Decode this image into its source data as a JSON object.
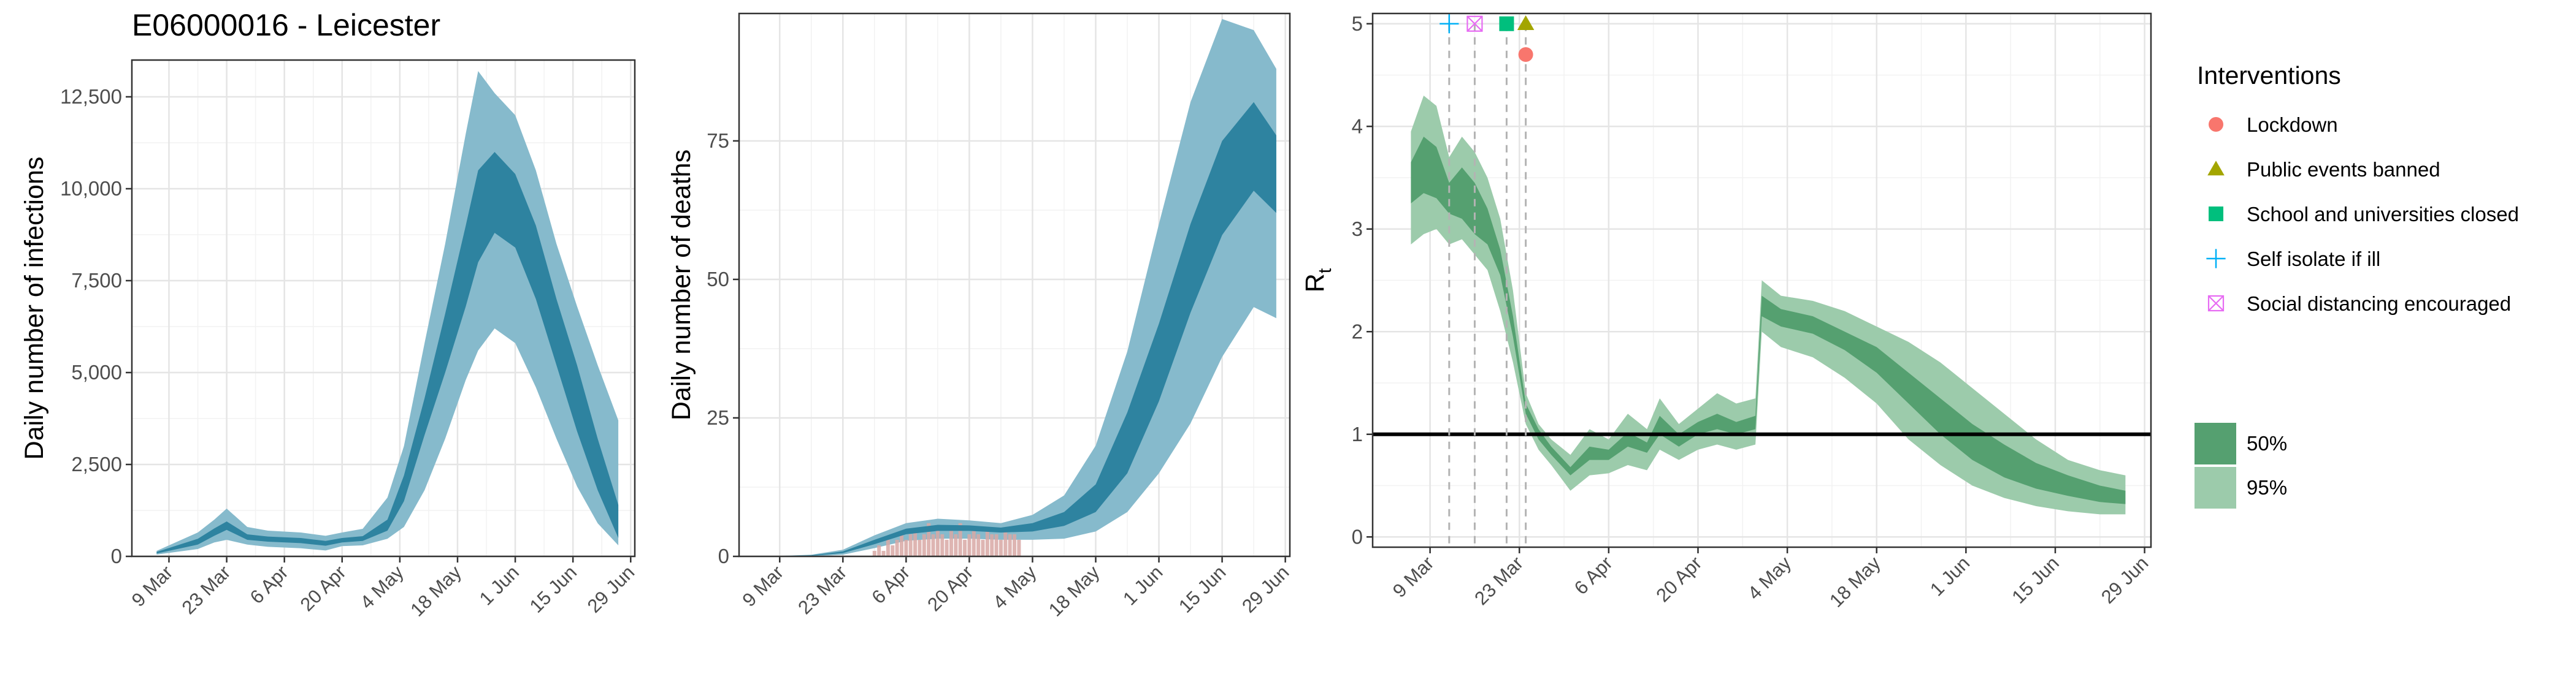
{
  "title": "E06000016 - Leicester",
  "date_ticks": [
    "9 Mar",
    "23 Mar",
    "6 Apr",
    "20 Apr",
    "4 May",
    "18 May",
    "1 Jun",
    "15 Jun",
    "29 Jun"
  ],
  "colors": {
    "band_inner_blue": "#2E83A0",
    "band_outer_blue": "#86BACC",
    "band_inner_green": "#55A070",
    "band_outer_green": "#9CCBAB",
    "observed_deaths": "#D8A8A4",
    "lockdown": "#F8766D",
    "public_events": "#A3A500",
    "schools": "#00BF7D",
    "self_isolate": "#00B0F6",
    "social_distancing": "#E76BF3"
  },
  "chart_data": [
    {
      "type": "area",
      "name": "infections",
      "ylabel": "Daily number of infections",
      "ylim": [
        0,
        13500
      ],
      "yticks": [
        0,
        2500,
        5000,
        7500,
        10000,
        12500
      ],
      "ytick_labels": [
        "0",
        "2,500",
        "5,000",
        "7,500",
        "10,000",
        "12,500"
      ],
      "x": [
        "2020-03-06",
        "2020-03-16",
        "2020-03-20",
        "2020-03-23",
        "2020-03-28",
        "2020-04-02",
        "2020-04-10",
        "2020-04-16",
        "2020-04-20",
        "2020-04-25",
        "2020-05-01",
        "2020-05-05",
        "2020-05-10",
        "2020-05-15",
        "2020-05-20",
        "2020-05-23",
        "2020-05-27",
        "2020-06-01",
        "2020-06-06",
        "2020-06-11",
        "2020-06-16",
        "2020-06-21",
        "2020-06-26"
      ],
      "series": [
        {
          "name": "95%",
          "lower": [
            50,
            200,
            380,
            450,
            320,
            260,
            220,
            160,
            280,
            300,
            480,
            800,
            1800,
            3200,
            4800,
            5600,
            6200,
            5800,
            4600,
            3200,
            1900,
            900,
            300
          ],
          "upper": [
            150,
            650,
            1000,
            1300,
            800,
            700,
            650,
            560,
            650,
            750,
            1600,
            3000,
            5800,
            8500,
            11500,
            13200,
            12600,
            12000,
            10500,
            8500,
            6800,
            5200,
            3700
          ]
        },
        {
          "name": "50%",
          "lower": [
            80,
            320,
            560,
            720,
            450,
            400,
            360,
            290,
            380,
            420,
            700,
            1500,
            3300,
            5000,
            6800,
            8000,
            8800,
            8400,
            7000,
            5200,
            3400,
            1800,
            500
          ],
          "upper": [
            120,
            480,
            760,
            950,
            600,
            540,
            500,
            420,
            500,
            550,
            1000,
            2200,
            4300,
            6600,
            9000,
            10500,
            11000,
            10400,
            9000,
            7000,
            5200,
            3200,
            1400
          ]
        }
      ]
    },
    {
      "type": "area",
      "name": "deaths",
      "ylabel": "Daily number of deaths",
      "ylim": [
        0,
        98
      ],
      "yticks": [
        0,
        25,
        50,
        75
      ],
      "ytick_labels": [
        "0",
        "25",
        "50",
        "75"
      ],
      "x": [
        "2020-03-06",
        "2020-03-16",
        "2020-03-23",
        "2020-03-30",
        "2020-04-06",
        "2020-04-13",
        "2020-04-20",
        "2020-04-27",
        "2020-05-04",
        "2020-05-11",
        "2020-05-18",
        "2020-05-25",
        "2020-06-01",
        "2020-06-08",
        "2020-06-15",
        "2020-06-22",
        "2020-06-27"
      ],
      "series": [
        {
          "name": "95%",
          "lower": [
            0,
            0,
            0.3,
            1.5,
            2.8,
            3.2,
            3.2,
            3.0,
            3.0,
            3.2,
            4.5,
            8,
            15,
            24,
            36,
            45,
            43
          ],
          "upper": [
            0,
            0.3,
            1.2,
            3.8,
            6.0,
            6.8,
            6.5,
            6.0,
            7.5,
            11,
            20,
            37,
            60,
            82,
            97,
            95,
            88
          ]
        },
        {
          "name": "50%",
          "lower": [
            0,
            0.1,
            0.6,
            2.2,
            4.0,
            4.6,
            4.6,
            4.3,
            4.5,
            5.5,
            8,
            15,
            28,
            44,
            58,
            66,
            62
          ]
        },
        {
          "name": "50%-upper",
          "upper": [
            0,
            0.2,
            0.9,
            3.0,
            5.0,
            5.7,
            5.6,
            5.2,
            6.0,
            8,
            13,
            26,
            42,
            60,
            75,
            82,
            76
          ]
        }
      ],
      "observed": {
        "name": "Observed deaths",
        "x": [
          "2020-03-30",
          "2020-03-31",
          "2020-04-01",
          "2020-04-02",
          "2020-04-03",
          "2020-04-04",
          "2020-04-05",
          "2020-04-06",
          "2020-04-07",
          "2020-04-08",
          "2020-04-09",
          "2020-04-10",
          "2020-04-11",
          "2020-04-12",
          "2020-04-13",
          "2020-04-14",
          "2020-04-15",
          "2020-04-16",
          "2020-04-17",
          "2020-04-18",
          "2020-04-19",
          "2020-04-20",
          "2020-04-21",
          "2020-04-22",
          "2020-04-23",
          "2020-04-24",
          "2020-04-25",
          "2020-04-26",
          "2020-04-27",
          "2020-04-28",
          "2020-04-29",
          "2020-04-30",
          "2020-05-01"
        ],
        "values": [
          1,
          2,
          1,
          3,
          2,
          3,
          4,
          3,
          4,
          5,
          3,
          4,
          6,
          4,
          5,
          4,
          3,
          5,
          4,
          6,
          3,
          4,
          5,
          4,
          3,
          5,
          4,
          4,
          3,
          5,
          4,
          4,
          3
        ]
      }
    },
    {
      "type": "area",
      "name": "rt",
      "ylabel": "R",
      "ylabel_sub": "t",
      "ylim": [
        -0.1,
        5.1
      ],
      "yticks": [
        0,
        1,
        2,
        3,
        4,
        5
      ],
      "ytick_labels": [
        "0",
        "1",
        "2",
        "3",
        "4",
        "5"
      ],
      "x": [
        "2020-03-06",
        "2020-03-08",
        "2020-03-10",
        "2020-03-12",
        "2020-03-14",
        "2020-03-16",
        "2020-03-18",
        "2020-03-20",
        "2020-03-22",
        "2020-03-24",
        "2020-03-26",
        "2020-03-28",
        "2020-03-31",
        "2020-04-03",
        "2020-04-06",
        "2020-04-09",
        "2020-04-12",
        "2020-04-14",
        "2020-04-17",
        "2020-04-20",
        "2020-04-23",
        "2020-04-26",
        "2020-04-29",
        "2020-04-30",
        "2020-05-03",
        "2020-05-08",
        "2020-05-13",
        "2020-05-18",
        "2020-05-23",
        "2020-05-28",
        "2020-06-02",
        "2020-06-07",
        "2020-06-12",
        "2020-06-17",
        "2020-06-22",
        "2020-06-26"
      ],
      "series": [
        {
          "name": "95%",
          "lower": [
            2.85,
            2.95,
            3.0,
            2.85,
            2.9,
            2.75,
            2.6,
            2.2,
            1.7,
            1.1,
            0.85,
            0.7,
            0.45,
            0.6,
            0.62,
            0.7,
            0.65,
            0.85,
            0.75,
            0.85,
            0.9,
            0.85,
            0.9,
            2.0,
            1.85,
            1.75,
            1.55,
            1.3,
            0.95,
            0.7,
            0.5,
            0.38,
            0.3,
            0.25,
            0.22,
            0.22
          ],
          "upper": [
            3.95,
            4.3,
            4.2,
            3.7,
            3.9,
            3.75,
            3.5,
            3.1,
            2.4,
            1.4,
            1.1,
            0.95,
            0.8,
            1.05,
            0.95,
            1.2,
            1.05,
            1.35,
            1.1,
            1.25,
            1.4,
            1.3,
            1.35,
            2.5,
            2.35,
            2.3,
            2.2,
            2.05,
            1.9,
            1.7,
            1.45,
            1.2,
            0.95,
            0.75,
            0.65,
            0.6
          ]
        },
        {
          "name": "50%",
          "lower": [
            3.25,
            3.35,
            3.3,
            3.15,
            3.1,
            2.95,
            2.85,
            2.55,
            1.95,
            1.2,
            0.95,
            0.8,
            0.6,
            0.75,
            0.75,
            0.88,
            0.82,
            1.0,
            0.88,
            1.0,
            1.05,
            1.0,
            1.05,
            2.15,
            2.05,
            1.98,
            1.82,
            1.6,
            1.3,
            1.0,
            0.75,
            0.58,
            0.47,
            0.4,
            0.34,
            0.32
          ]
        },
        {
          "name": "50%-upper",
          "upper": [
            3.65,
            3.9,
            3.8,
            3.45,
            3.6,
            3.45,
            3.2,
            2.8,
            2.15,
            1.3,
            1.05,
            0.88,
            0.68,
            0.88,
            0.85,
            1.02,
            0.92,
            1.18,
            1.0,
            1.12,
            1.2,
            1.12,
            1.18,
            2.35,
            2.22,
            2.15,
            2.0,
            1.85,
            1.6,
            1.35,
            1.1,
            0.9,
            0.72,
            0.6,
            0.5,
            0.45
          ]
        }
      ],
      "reference_line": 1,
      "interventions": [
        {
          "name": "Self isolate if ill",
          "date": "2020-03-12",
          "symbol": "plus"
        },
        {
          "name": "Social distancing encouraged",
          "date": "2020-03-16",
          "symbol": "boxcross"
        },
        {
          "name": "School and universities closed",
          "date": "2020-03-21",
          "symbol": "square"
        },
        {
          "name": "Public events banned",
          "date": "2020-03-24",
          "symbol": "triangle"
        },
        {
          "name": "Lockdown",
          "date": "2020-03-24",
          "symbol": "circle",
          "y": 4.7
        }
      ]
    }
  ],
  "legend": {
    "interventions_title": "Interventions",
    "interventions": [
      {
        "label": "Lockdown",
        "symbol": "circle",
        "color_key": "lockdown"
      },
      {
        "label": "Public events banned",
        "symbol": "triangle",
        "color_key": "public_events"
      },
      {
        "label": "School and universities closed",
        "symbol": "square",
        "color_key": "schools"
      },
      {
        "label": "Self isolate if ill",
        "symbol": "plus",
        "color_key": "self_isolate"
      },
      {
        "label": "Social distancing encouraged",
        "symbol": "boxcross",
        "color_key": "social_distancing"
      }
    ],
    "bands": [
      {
        "label": "50%",
        "color_key": "band_inner_green"
      },
      {
        "label": "95%",
        "color_key": "band_outer_green"
      }
    ]
  }
}
